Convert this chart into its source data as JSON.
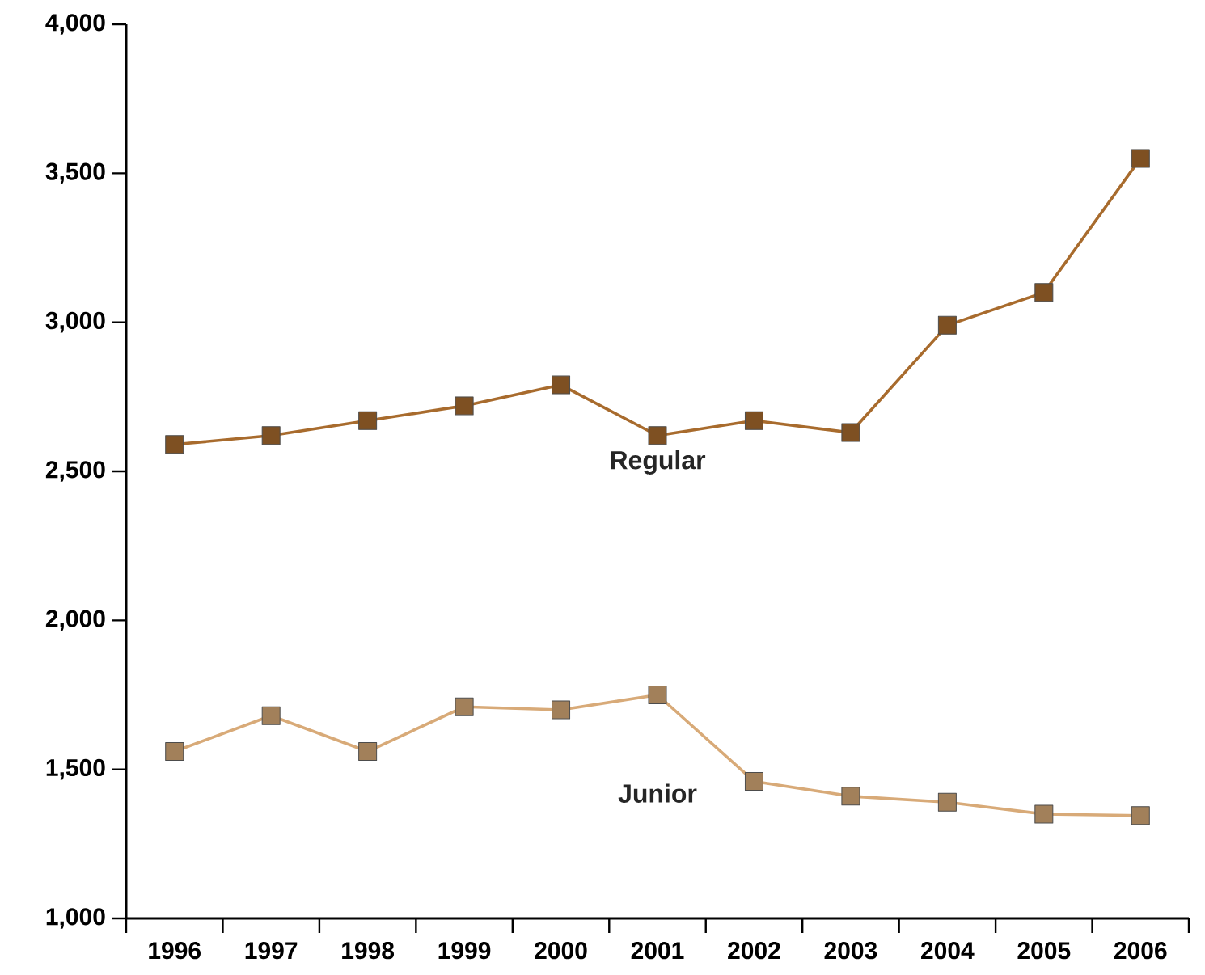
{
  "chart_data": {
    "type": "line",
    "categories": [
      "1996",
      "1997",
      "1998",
      "1999",
      "2000",
      "2001",
      "2002",
      "2003",
      "2004",
      "2005",
      "2006"
    ],
    "series": [
      {
        "name": "Regular",
        "color": "#a86b2d",
        "values": [
          2590,
          2620,
          2670,
          2720,
          2790,
          2620,
          2670,
          2630,
          2990,
          3100,
          3550
        ]
      },
      {
        "name": "Junior",
        "color": "#d8aa78",
        "values": [
          1560,
          1680,
          1560,
          1710,
          1700,
          1750,
          1460,
          1410,
          1390,
          1350,
          1345
        ]
      }
    ],
    "ylim": [
      1000,
      4000
    ],
    "yticks": [
      {
        "value": 1000,
        "label": "1,000"
      },
      {
        "value": 1500,
        "label": "1,500"
      },
      {
        "value": 2000,
        "label": "2,000"
      },
      {
        "value": 2500,
        "label": "2,500"
      },
      {
        "value": 3000,
        "label": "3,000"
      },
      {
        "value": 3500,
        "label": "3,500"
      },
      {
        "value": 4000,
        "label": "4,000"
      }
    ],
    "marker": "square",
    "legend": false,
    "grid": false
  }
}
